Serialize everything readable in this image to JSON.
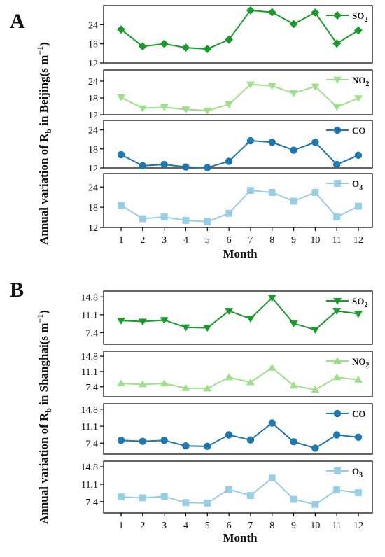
{
  "figure": {
    "panels": [
      {
        "letter": "A",
        "ylabel": "Annual variation of R_b in Beijing(s m^-1)",
        "ylabel_main": "Annual variation of R",
        "ylabel_sub": "b",
        "ylabel_tail": " in Beijing(s m",
        "ylabel_sup": "−1",
        "ylabel_close": ")",
        "xlabel": "Month"
      },
      {
        "letter": "B",
        "ylabel": "Annual variation of R_b in Shanghai(s m^-1)",
        "ylabel_main": "Annual variation of R",
        "ylabel_sub": "b",
        "ylabel_tail": " in Shanghai(s m",
        "ylabel_sup": "−1",
        "ylabel_close": ")",
        "xlabel": "Month"
      }
    ]
  },
  "chart_data": [
    {
      "type": "line",
      "panel": "A",
      "pollutant": "SO2",
      "legend_base": "SO",
      "legend_sub": "2",
      "marker": "diamond",
      "color": "#1a9a2a",
      "x": [
        1,
        2,
        3,
        4,
        5,
        6,
        7,
        8,
        9,
        10,
        11,
        12
      ],
      "values": [
        22.5,
        17.2,
        18.0,
        16.8,
        16.4,
        19.3,
        28.5,
        27.9,
        24.2,
        27.8,
        18.1,
        22.2
      ],
      "ylim": [
        12,
        30
      ],
      "yticks": [
        12,
        18,
        24
      ]
    },
    {
      "type": "line",
      "panel": "A",
      "pollutant": "NO2",
      "legend_base": "NO",
      "legend_sub": "2",
      "marker": "triangle-down",
      "color": "#9ee08a",
      "x": [
        1,
        2,
        3,
        4,
        5,
        6,
        7,
        8,
        9,
        10,
        11,
        12
      ],
      "values": [
        18.2,
        14.3,
        14.7,
        13.9,
        13.5,
        15.7,
        22.8,
        22.3,
        19.7,
        22.1,
        14.8,
        17.9
      ],
      "ylim": [
        12,
        28
      ],
      "yticks": [
        12,
        18,
        24
      ]
    },
    {
      "type": "line",
      "panel": "A",
      "pollutant": "CO",
      "legend_base": "CO",
      "legend_sub": "",
      "marker": "circle",
      "color": "#1f77b0",
      "x": [
        1,
        2,
        3,
        4,
        5,
        6,
        7,
        8,
        9,
        10,
        11,
        12
      ],
      "values": [
        16.2,
        12.7,
        13.1,
        12.3,
        12.1,
        14.1,
        20.6,
        20.1,
        17.6,
        20.1,
        13.1,
        16.0
      ],
      "ylim": [
        12,
        27
      ],
      "yticks": [
        12,
        18,
        24
      ]
    },
    {
      "type": "line",
      "panel": "A",
      "pollutant": "O3",
      "legend_base": "O",
      "legend_sub": "3",
      "marker": "square",
      "color": "#98cde6",
      "x": [
        1,
        2,
        3,
        4,
        5,
        6,
        7,
        8,
        9,
        10,
        11,
        12
      ],
      "values": [
        18.6,
        14.6,
        15.1,
        14.1,
        13.7,
        16.2,
        23.0,
        22.4,
        19.8,
        22.4,
        15.1,
        18.3
      ],
      "ylim": [
        12,
        28
      ],
      "yticks": [
        12,
        18,
        24
      ]
    },
    {
      "type": "line",
      "panel": "B",
      "pollutant": "SO2",
      "legend_base": "SO",
      "legend_sub": "2",
      "marker": "triangle-down",
      "color": "#1a9a2a",
      "x": [
        1,
        2,
        3,
        4,
        5,
        6,
        7,
        8,
        9,
        10,
        11,
        12
      ],
      "values": [
        9.9,
        9.7,
        10.0,
        8.5,
        8.4,
        11.9,
        10.3,
        14.6,
        9.3,
        8.0,
        11.9,
        11.3
      ],
      "ylim": [
        5,
        16
      ],
      "yticks": [
        7.4,
        11.1,
        14.8
      ]
    },
    {
      "type": "line",
      "panel": "B",
      "pollutant": "NO2",
      "legend_base": "NO",
      "legend_sub": "2",
      "marker": "triangle-up",
      "color": "#9ee08a",
      "x": [
        1,
        2,
        3,
        4,
        5,
        6,
        7,
        8,
        9,
        10,
        11,
        12
      ],
      "values": [
        8.2,
        8.0,
        8.2,
        7.1,
        7.0,
        9.7,
        8.5,
        12.0,
        7.7,
        6.7,
        9.7,
        9.1
      ],
      "ylim": [
        5,
        16
      ],
      "yticks": [
        7.4,
        11.1,
        14.8
      ]
    },
    {
      "type": "line",
      "panel": "B",
      "pollutant": "CO",
      "legend_base": "CO",
      "legend_sub": "",
      "marker": "circle",
      "color": "#1f77b0",
      "x": [
        1,
        2,
        3,
        4,
        5,
        6,
        7,
        8,
        9,
        10,
        11,
        12
      ],
      "values": [
        8.0,
        7.8,
        8.0,
        6.8,
        6.7,
        9.2,
        8.1,
        11.8,
        7.7,
        6.3,
        9.2,
        8.7
      ],
      "ylim": [
        5,
        16
      ],
      "yticks": [
        7.4,
        11.1,
        14.8
      ]
    },
    {
      "type": "line",
      "panel": "B",
      "pollutant": "O3",
      "legend_base": "O",
      "legend_sub": "3",
      "marker": "square",
      "color": "#98cde6",
      "x": [
        1,
        2,
        3,
        4,
        5,
        6,
        7,
        8,
        9,
        10,
        11,
        12
      ],
      "values": [
        8.4,
        8.2,
        8.5,
        7.2,
        7.1,
        10.0,
        8.7,
        12.4,
        7.9,
        6.8,
        9.9,
        9.3
      ],
      "ylim": [
        5,
        16
      ],
      "yticks": [
        7.4,
        11.1,
        14.8
      ]
    }
  ]
}
